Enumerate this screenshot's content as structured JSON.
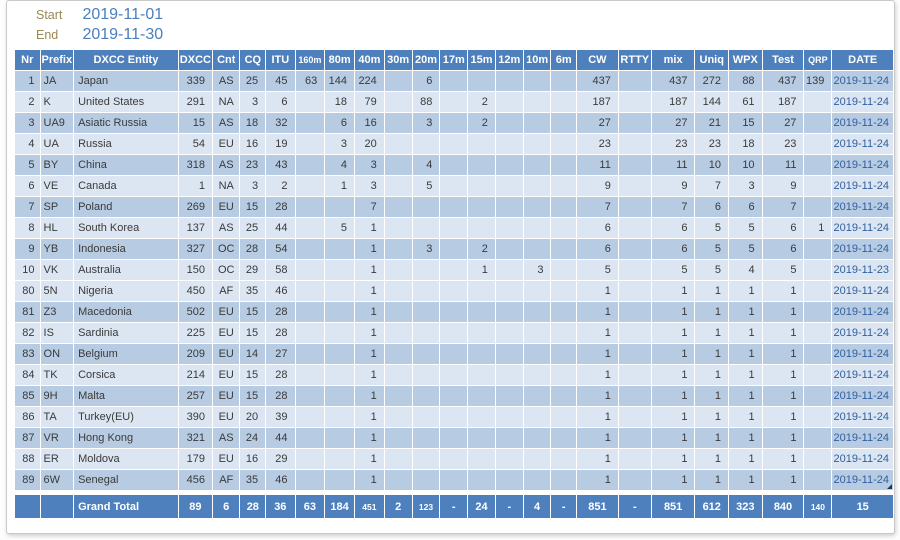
{
  "filters": {
    "start_label": "Start",
    "start_value": "2019-11-01",
    "end_label": "End",
    "end_value": "2019-11-30"
  },
  "colors": {
    "header_bg": "#4e80bd",
    "total_bg": "#4e80bd",
    "row_dark": "#b7cbe3",
    "row_light": "#dce6f2",
    "date_text": "#31609f",
    "filter_label": "#9a8a56",
    "filter_value": "#4a7ebd",
    "cell_text": "#3a3a3a"
  },
  "table": {
    "columns": [
      {
        "key": "nr",
        "label": "Nr",
        "align": "right"
      },
      {
        "key": "prefix",
        "label": "Prefix",
        "align": "left"
      },
      {
        "key": "entity",
        "label": "DXCC Entity",
        "align": "left"
      },
      {
        "key": "dxcc",
        "label": "DXCC",
        "align": "right"
      },
      {
        "key": "cnt",
        "label": "Cnt",
        "align": "center"
      },
      {
        "key": "cq",
        "label": "CQ",
        "align": "right"
      },
      {
        "key": "itu",
        "label": "ITU",
        "align": "right"
      },
      {
        "key": "b160",
        "label": "160m",
        "align": "right",
        "small_header": true
      },
      {
        "key": "b80",
        "label": "80m",
        "align": "right"
      },
      {
        "key": "b40",
        "label": "40m",
        "align": "right"
      },
      {
        "key": "b30",
        "label": "30m",
        "align": "right"
      },
      {
        "key": "b20",
        "label": "20m",
        "align": "right"
      },
      {
        "key": "b17",
        "label": "17m",
        "align": "right"
      },
      {
        "key": "b15",
        "label": "15m",
        "align": "right"
      },
      {
        "key": "b12",
        "label": "12m",
        "align": "right"
      },
      {
        "key": "b10",
        "label": "10m",
        "align": "right"
      },
      {
        "key": "b6",
        "label": "6m",
        "align": "right"
      },
      {
        "key": "cw",
        "label": "CW",
        "align": "right"
      },
      {
        "key": "rtty",
        "label": "RTTY",
        "align": "right"
      },
      {
        "key": "mix",
        "label": "mix",
        "align": "right"
      },
      {
        "key": "uniq",
        "label": "Uniq",
        "align": "right"
      },
      {
        "key": "wpx",
        "label": "WPX",
        "align": "right"
      },
      {
        "key": "test",
        "label": "Test",
        "align": "right"
      },
      {
        "key": "qrp",
        "label": "QRP",
        "align": "right",
        "small_header": true
      },
      {
        "key": "date",
        "label": "DATE",
        "align": "right",
        "is_date": true
      }
    ],
    "rows": [
      {
        "nr": 1,
        "prefix": "JA",
        "entity": "Japan",
        "dxcc": 339,
        "cnt": "AS",
        "cq": 25,
        "itu": 45,
        "b160": 63,
        "b80": 144,
        "b40": 224,
        "b30": "",
        "b20": 6,
        "b17": "",
        "b15": "",
        "b12": "",
        "b10": "",
        "b6": "",
        "cw": 437,
        "rtty": "",
        "mix": 437,
        "uniq": 272,
        "wpx": 88,
        "test": 437,
        "qrp": 139,
        "date": "2019-11-24"
      },
      {
        "nr": 2,
        "prefix": "K",
        "entity": "United States",
        "dxcc": 291,
        "cnt": "NA",
        "cq": 3,
        "itu": 6,
        "b160": "",
        "b80": 18,
        "b40": 79,
        "b30": "",
        "b20": 88,
        "b17": "",
        "b15": 2,
        "b12": "",
        "b10": "",
        "b6": "",
        "cw": 187,
        "rtty": "",
        "mix": 187,
        "uniq": 144,
        "wpx": 61,
        "test": 187,
        "qrp": "",
        "date": "2019-11-24"
      },
      {
        "nr": 3,
        "prefix": "UA9",
        "entity": "Asiatic Russia",
        "dxcc": 15,
        "cnt": "AS",
        "cq": 18,
        "itu": 32,
        "b160": "",
        "b80": 6,
        "b40": 16,
        "b30": "",
        "b20": 3,
        "b17": "",
        "b15": 2,
        "b12": "",
        "b10": "",
        "b6": "",
        "cw": 27,
        "rtty": "",
        "mix": 27,
        "uniq": 21,
        "wpx": 15,
        "test": 27,
        "qrp": "",
        "date": "2019-11-24"
      },
      {
        "nr": 4,
        "prefix": "UA",
        "entity": "Russia",
        "dxcc": 54,
        "cnt": "EU",
        "cq": 16,
        "itu": 19,
        "b160": "",
        "b80": 3,
        "b40": 20,
        "b30": "",
        "b20": "",
        "b17": "",
        "b15": "",
        "b12": "",
        "b10": "",
        "b6": "",
        "cw": 23,
        "rtty": "",
        "mix": 23,
        "uniq": 23,
        "wpx": 18,
        "test": 23,
        "qrp": "",
        "date": "2019-11-24"
      },
      {
        "nr": 5,
        "prefix": "BY",
        "entity": "China",
        "dxcc": 318,
        "cnt": "AS",
        "cq": 23,
        "itu": 43,
        "b160": "",
        "b80": 4,
        "b40": 3,
        "b30": "",
        "b20": 4,
        "b17": "",
        "b15": "",
        "b12": "",
        "b10": "",
        "b6": "",
        "cw": 11,
        "rtty": "",
        "mix": 11,
        "uniq": 10,
        "wpx": 10,
        "test": 11,
        "qrp": "",
        "date": "2019-11-24"
      },
      {
        "nr": 6,
        "prefix": "VE",
        "entity": "Canada",
        "dxcc": 1,
        "cnt": "NA",
        "cq": 3,
        "itu": 2,
        "b160": "",
        "b80": 1,
        "b40": 3,
        "b30": "",
        "b20": 5,
        "b17": "",
        "b15": "",
        "b12": "",
        "b10": "",
        "b6": "",
        "cw": 9,
        "rtty": "",
        "mix": 9,
        "uniq": 7,
        "wpx": 3,
        "test": 9,
        "qrp": "",
        "date": "2019-11-24"
      },
      {
        "nr": 7,
        "prefix": "SP",
        "entity": "Poland",
        "dxcc": 269,
        "cnt": "EU",
        "cq": 15,
        "itu": 28,
        "b160": "",
        "b80": "",
        "b40": 7,
        "b30": "",
        "b20": "",
        "b17": "",
        "b15": "",
        "b12": "",
        "b10": "",
        "b6": "",
        "cw": 7,
        "rtty": "",
        "mix": 7,
        "uniq": 6,
        "wpx": 6,
        "test": 7,
        "qrp": "",
        "date": "2019-11-24"
      },
      {
        "nr": 8,
        "prefix": "HL",
        "entity": "South Korea",
        "dxcc": 137,
        "cnt": "AS",
        "cq": 25,
        "itu": 44,
        "b160": "",
        "b80": 5,
        "b40": 1,
        "b30": "",
        "b20": "",
        "b17": "",
        "b15": "",
        "b12": "",
        "b10": "",
        "b6": "",
        "cw": 6,
        "rtty": "",
        "mix": 6,
        "uniq": 5,
        "wpx": 5,
        "test": 6,
        "qrp": 1,
        "date": "2019-11-24"
      },
      {
        "nr": 9,
        "prefix": "YB",
        "entity": "Indonesia",
        "dxcc": 327,
        "cnt": "OC",
        "cq": 28,
        "itu": 54,
        "b160": "",
        "b80": "",
        "b40": 1,
        "b30": "",
        "b20": 3,
        "b17": "",
        "b15": 2,
        "b12": "",
        "b10": "",
        "b6": "",
        "cw": 6,
        "rtty": "",
        "mix": 6,
        "uniq": 5,
        "wpx": 5,
        "test": 6,
        "qrp": "",
        "date": "2019-11-24"
      },
      {
        "nr": 10,
        "prefix": "VK",
        "entity": "Australia",
        "dxcc": 150,
        "cnt": "OC",
        "cq": 29,
        "itu": 58,
        "b160": "",
        "b80": "",
        "b40": 1,
        "b30": "",
        "b20": "",
        "b17": "",
        "b15": 1,
        "b12": "",
        "b10": 3,
        "b6": "",
        "cw": 5,
        "rtty": "",
        "mix": 5,
        "uniq": 5,
        "wpx": 4,
        "test": 5,
        "qrp": "",
        "date": "2019-11-23"
      },
      {
        "nr": 80,
        "prefix": "5N",
        "entity": "Nigeria",
        "dxcc": 450,
        "cnt": "AF",
        "cq": 35,
        "itu": 46,
        "b160": "",
        "b80": "",
        "b40": 1,
        "b30": "",
        "b20": "",
        "b17": "",
        "b15": "",
        "b12": "",
        "b10": "",
        "b6": "",
        "cw": 1,
        "rtty": "",
        "mix": 1,
        "uniq": 1,
        "wpx": 1,
        "test": 1,
        "qrp": "",
        "date": "2019-11-24"
      },
      {
        "nr": 81,
        "prefix": "Z3",
        "entity": "Macedonia",
        "dxcc": 502,
        "cnt": "EU",
        "cq": 15,
        "itu": 28,
        "b160": "",
        "b80": "",
        "b40": 1,
        "b30": "",
        "b20": "",
        "b17": "",
        "b15": "",
        "b12": "",
        "b10": "",
        "b6": "",
        "cw": 1,
        "rtty": "",
        "mix": 1,
        "uniq": 1,
        "wpx": 1,
        "test": 1,
        "qrp": "",
        "date": "2019-11-24"
      },
      {
        "nr": 82,
        "prefix": "IS",
        "entity": "Sardinia",
        "dxcc": 225,
        "cnt": "EU",
        "cq": 15,
        "itu": 28,
        "b160": "",
        "b80": "",
        "b40": 1,
        "b30": "",
        "b20": "",
        "b17": "",
        "b15": "",
        "b12": "",
        "b10": "",
        "b6": "",
        "cw": 1,
        "rtty": "",
        "mix": 1,
        "uniq": 1,
        "wpx": 1,
        "test": 1,
        "qrp": "",
        "date": "2019-11-24"
      },
      {
        "nr": 83,
        "prefix": "ON",
        "entity": "Belgium",
        "dxcc": 209,
        "cnt": "EU",
        "cq": 14,
        "itu": 27,
        "b160": "",
        "b80": "",
        "b40": 1,
        "b30": "",
        "b20": "",
        "b17": "",
        "b15": "",
        "b12": "",
        "b10": "",
        "b6": "",
        "cw": 1,
        "rtty": "",
        "mix": 1,
        "uniq": 1,
        "wpx": 1,
        "test": 1,
        "qrp": "",
        "date": "2019-11-24"
      },
      {
        "nr": 84,
        "prefix": "TK",
        "entity": "Corsica",
        "dxcc": 214,
        "cnt": "EU",
        "cq": 15,
        "itu": 28,
        "b160": "",
        "b80": "",
        "b40": 1,
        "b30": "",
        "b20": "",
        "b17": "",
        "b15": "",
        "b12": "",
        "b10": "",
        "b6": "",
        "cw": 1,
        "rtty": "",
        "mix": 1,
        "uniq": 1,
        "wpx": 1,
        "test": 1,
        "qrp": "",
        "date": "2019-11-24"
      },
      {
        "nr": 85,
        "prefix": "9H",
        "entity": "Malta",
        "dxcc": 257,
        "cnt": "EU",
        "cq": 15,
        "itu": 28,
        "b160": "",
        "b80": "",
        "b40": 1,
        "b30": "",
        "b20": "",
        "b17": "",
        "b15": "",
        "b12": "",
        "b10": "",
        "b6": "",
        "cw": 1,
        "rtty": "",
        "mix": 1,
        "uniq": 1,
        "wpx": 1,
        "test": 1,
        "qrp": "",
        "date": "2019-11-24"
      },
      {
        "nr": 86,
        "prefix": "TA",
        "entity": "Turkey(EU)",
        "dxcc": 390,
        "cnt": "EU",
        "cq": 20,
        "itu": 39,
        "b160": "",
        "b80": "",
        "b40": 1,
        "b30": "",
        "b20": "",
        "b17": "",
        "b15": "",
        "b12": "",
        "b10": "",
        "b6": "",
        "cw": 1,
        "rtty": "",
        "mix": 1,
        "uniq": 1,
        "wpx": 1,
        "test": 1,
        "qrp": "",
        "date": "2019-11-24"
      },
      {
        "nr": 87,
        "prefix": "VR",
        "entity": "Hong Kong",
        "dxcc": 321,
        "cnt": "AS",
        "cq": 24,
        "itu": 44,
        "b160": "",
        "b80": "",
        "b40": 1,
        "b30": "",
        "b20": "",
        "b17": "",
        "b15": "",
        "b12": "",
        "b10": "",
        "b6": "",
        "cw": 1,
        "rtty": "",
        "mix": 1,
        "uniq": 1,
        "wpx": 1,
        "test": 1,
        "qrp": "",
        "date": "2019-11-24"
      },
      {
        "nr": 88,
        "prefix": "ER",
        "entity": "Moldova",
        "dxcc": 179,
        "cnt": "EU",
        "cq": 16,
        "itu": 29,
        "b160": "",
        "b80": "",
        "b40": 1,
        "b30": "",
        "b20": "",
        "b17": "",
        "b15": "",
        "b12": "",
        "b10": "",
        "b6": "",
        "cw": 1,
        "rtty": "",
        "mix": 1,
        "uniq": 1,
        "wpx": 1,
        "test": 1,
        "qrp": "",
        "date": "2019-11-24"
      },
      {
        "nr": 89,
        "prefix": "6W",
        "entity": "Senegal",
        "dxcc": 456,
        "cnt": "AF",
        "cq": 35,
        "itu": 46,
        "b160": "",
        "b80": "",
        "b40": 1,
        "b30": "",
        "b20": "",
        "b17": "",
        "b15": "",
        "b12": "",
        "b10": "",
        "b6": "",
        "cw": 1,
        "rtty": "",
        "mix": 1,
        "uniq": 1,
        "wpx": 1,
        "test": 1,
        "qrp": "",
        "date": "2019-11-24"
      }
    ],
    "grand_total": {
      "nr": "",
      "prefix": "",
      "entity": "Grand Total",
      "dxcc": 89,
      "cnt": 6,
      "cq": 28,
      "itu": 36,
      "b160": 63,
      "b80": 184,
      "b40": 451,
      "b30": 2,
      "b20": 123,
      "b17": "-",
      "b15": 24,
      "b12": "-",
      "b10": 4,
      "b6": "-",
      "cw": 851,
      "rtty": "-",
      "mix": 851,
      "uniq": 612,
      "wpx": 323,
      "test": 840,
      "qrp": 140,
      "date": 15,
      "shrink_keys": [
        "b40",
        "b20",
        "qrp"
      ]
    }
  }
}
